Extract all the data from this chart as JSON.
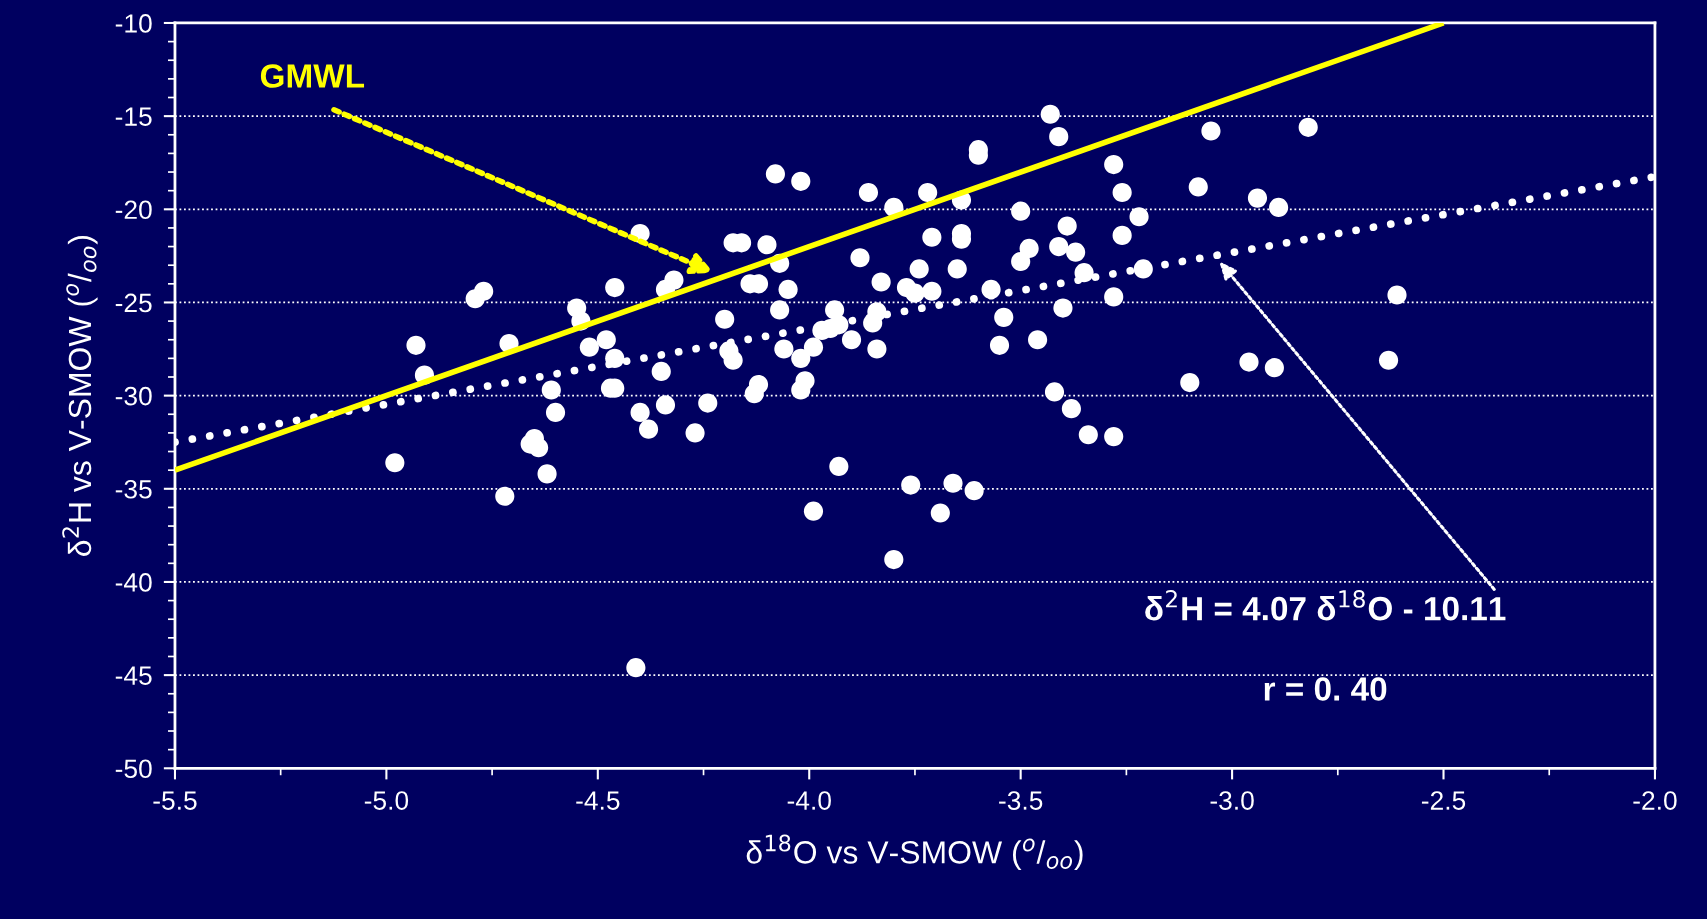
{
  "chart_data": {
    "type": "scatter",
    "xlabel": "δ$^{18}$O vs V-SMOW ($^{o}$/$_{oo}$)",
    "ylabel": "δ$^{2}$H vs V-SMOW ($^{o}$/$_{oo}$)",
    "xlim": [
      -5.5,
      -2.0
    ],
    "ylim": [
      -50,
      -10
    ],
    "xticks": [
      {
        "value": -5.5,
        "label": "-5.5"
      },
      {
        "value": -5.0,
        "label": "-5.0"
      },
      {
        "value": -4.5,
        "label": "-4.5"
      },
      {
        "value": -4.0,
        "label": "-4.0"
      },
      {
        "value": -3.5,
        "label": "-3.5"
      },
      {
        "value": -3.0,
        "label": "-3.0"
      },
      {
        "value": -2.5,
        "label": "-2.5"
      },
      {
        "value": -2.0,
        "label": "-2.0"
      }
    ],
    "yticks": [
      -50,
      -45,
      -40,
      -35,
      -30,
      -25,
      -20,
      -15,
      -10
    ],
    "grid": "y",
    "series": [
      {
        "color": "#ffffff",
        "marker": "circle",
        "x": [
          -4.79,
          -4.77,
          -4.71,
          -4.72,
          -4.93,
          -4.91,
          -4.98,
          -4.55,
          -4.54,
          -4.52,
          -4.48,
          -4.46,
          -4.47,
          -4.46,
          -4.46,
          -4.61,
          -4.6,
          -4.65,
          -4.64,
          -4.66,
          -4.62,
          -4.41,
          -4.4,
          -4.4,
          -4.38,
          -4.34,
          -4.32,
          -4.35,
          -4.34,
          -4.27,
          -4.24,
          -4.2,
          -4.19,
          -4.18,
          -4.18,
          -4.16,
          -4.13,
          -4.12,
          -4.14,
          -4.12,
          -4.1,
          -4.08,
          -4.07,
          -4.07,
          -4.06,
          -4.05,
          -4.02,
          -4.02,
          -4.02,
          -4.01,
          -3.99,
          -3.99,
          -3.97,
          -3.95,
          -3.94,
          -3.93,
          -3.9,
          -3.93,
          -3.88,
          -3.86,
          -3.85,
          -3.84,
          -3.83,
          -3.84,
          -3.8,
          -3.8,
          -3.77,
          -3.75,
          -3.74,
          -3.76,
          -3.72,
          -3.71,
          -3.71,
          -3.69,
          -3.66,
          -3.65,
          -3.64,
          -3.64,
          -3.64,
          -3.61,
          -3.6,
          -3.6,
          -3.57,
          -3.54,
          -3.55,
          -3.5,
          -3.5,
          -3.48,
          -3.46,
          -3.43,
          -3.42,
          -3.41,
          -3.41,
          -3.4,
          -3.39,
          -3.38,
          -3.37,
          -3.35,
          -3.34,
          -3.28,
          -3.28,
          -3.28,
          -3.26,
          -3.26,
          -3.22,
          -3.21,
          -3.1,
          -3.08,
          -3.05,
          -2.96,
          -2.94,
          -2.9,
          -2.89,
          -2.82,
          -2.61,
          -2.63
        ],
        "values": [
          -24.8,
          -24.4,
          -27.2,
          -35.4,
          -27.3,
          -28.9,
          -33.6,
          -25.3,
          -26.0,
          -27.4,
          -27.0,
          -28.0,
          -29.6,
          -29.6,
          -24.2,
          -29.7,
          -30.9,
          -32.3,
          -32.8,
          -32.6,
          -34.2,
          -44.6,
          -21.3,
          -30.9,
          -31.8,
          -24.3,
          -23.8,
          -28.7,
          -30.5,
          -32.0,
          -30.4,
          -25.9,
          -27.6,
          -28.1,
          -21.8,
          -21.8,
          -29.9,
          -29.4,
          -24.0,
          -24.0,
          -21.9,
          -18.1,
          -22.9,
          -25.4,
          -27.5,
          -24.3,
          -28.0,
          -18.5,
          -29.7,
          -29.2,
          -36.2,
          -27.4,
          -26.5,
          -26.4,
          -25.4,
          -26.2,
          -27.0,
          -33.8,
          -22.6,
          -19.1,
          -26.1,
          -25.5,
          -23.9,
          -27.5,
          -19.9,
          -38.8,
          -24.2,
          -24.5,
          -23.2,
          -34.8,
          -19.1,
          -21.5,
          -24.4,
          -36.3,
          -34.7,
          -23.2,
          -19.5,
          -21.3,
          -21.6,
          -35.1,
          -16.8,
          -17.1,
          -24.3,
          -25.8,
          -27.3,
          -22.8,
          -20.1,
          -22.1,
          -27.0,
          -14.9,
          -29.8,
          -16.1,
          -22.0,
          -25.3,
          -20.9,
          -30.7,
          -22.3,
          -23.4,
          -32.1,
          -17.6,
          -32.2,
          -24.7,
          -19.1,
          -21.4,
          -20.4,
          -23.2,
          -29.3,
          -18.8,
          -15.8,
          -28.2,
          -19.4,
          -28.5,
          -19.9,
          -15.6,
          -24.6,
          -28.1
        ]
      },
      {
        "type": "line",
        "color": "#ffffff",
        "line_style": "dotted",
        "x": [
          -5.5,
          -2.0
        ],
        "values": [
          -32.5,
          -18.25
        ]
      },
      {
        "type": "line",
        "name": "GMWL",
        "color": "#ffff00",
        "line_style": "solid",
        "x": [
          -5.5,
          -2.5
        ],
        "values": [
          -34,
          -10
        ]
      }
    ],
    "annotations": [
      "δ$^{2}$H = 4.07 δ$^{18}$O - 10.11",
      "r = 0. 40"
    ]
  }
}
